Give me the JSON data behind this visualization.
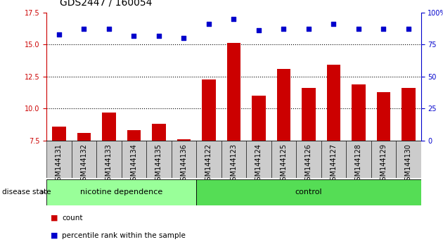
{
  "title": "GDS2447 / 160054",
  "categories": [
    "GSM144131",
    "GSM144132",
    "GSM144133",
    "GSM144134",
    "GSM144135",
    "GSM144136",
    "GSM144122",
    "GSM144123",
    "GSM144124",
    "GSM144125",
    "GSM144126",
    "GSM144127",
    "GSM144128",
    "GSM144129",
    "GSM144130"
  ],
  "count_values": [
    8.6,
    8.1,
    9.7,
    8.3,
    8.8,
    7.6,
    12.3,
    15.1,
    11.0,
    13.1,
    11.6,
    13.4,
    11.9,
    11.3,
    11.6
  ],
  "percentile_values": [
    83,
    87,
    87,
    82,
    82,
    80,
    91,
    95,
    86,
    87,
    87,
    91,
    87,
    87,
    87
  ],
  "ylim_left": [
    7.5,
    17.5
  ],
  "ylim_right": [
    0,
    100
  ],
  "yticks_left": [
    7.5,
    10.0,
    12.5,
    15.0,
    17.5
  ],
  "yticks_right": [
    0,
    25,
    50,
    75,
    100
  ],
  "bar_color": "#cc0000",
  "dot_color": "#0000cc",
  "groups": [
    {
      "label": "nicotine dependence",
      "start": 0,
      "end": 6,
      "color": "#99ff99"
    },
    {
      "label": "control",
      "start": 6,
      "end": 15,
      "color": "#55dd55"
    }
  ],
  "disease_state_label": "disease state",
  "legend_items": [
    {
      "label": "count",
      "color": "#cc0000"
    },
    {
      "label": "percentile rank within the sample",
      "color": "#0000cc"
    }
  ],
  "bg_color": "#ffffff",
  "tick_area_color": "#cccccc",
  "title_fontsize": 10,
  "tick_fontsize": 7,
  "group_fontsize": 8
}
